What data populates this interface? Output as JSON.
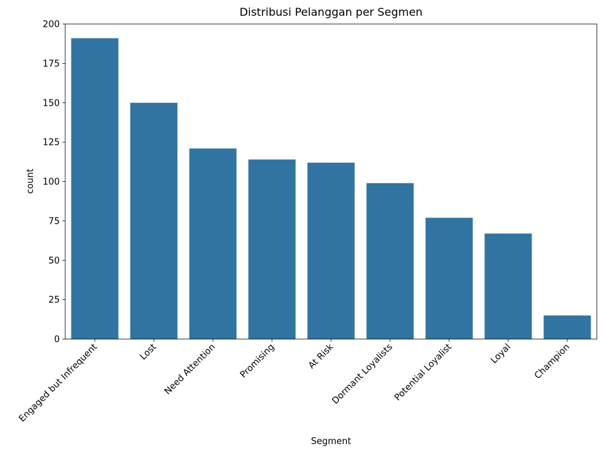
{
  "chart_data": {
    "type": "bar",
    "title": "Distribusi Pelanggan per Segmen",
    "xlabel": "Segment",
    "ylabel": "count",
    "categories": [
      "Engaged but Infrequent",
      "Lost",
      "Need Attention",
      "Promising",
      "At Risk",
      "Dormant Loyalists",
      "Potential Loyalist",
      "Loyal",
      "Champion"
    ],
    "values": [
      191,
      150,
      121,
      114,
      112,
      99,
      77,
      67,
      15
    ],
    "ylim": [
      0,
      200
    ],
    "yticks": [
      0,
      25,
      50,
      75,
      100,
      125,
      150,
      175,
      200
    ],
    "grid": false,
    "legend": "none",
    "bar_color": "#3274a1"
  }
}
